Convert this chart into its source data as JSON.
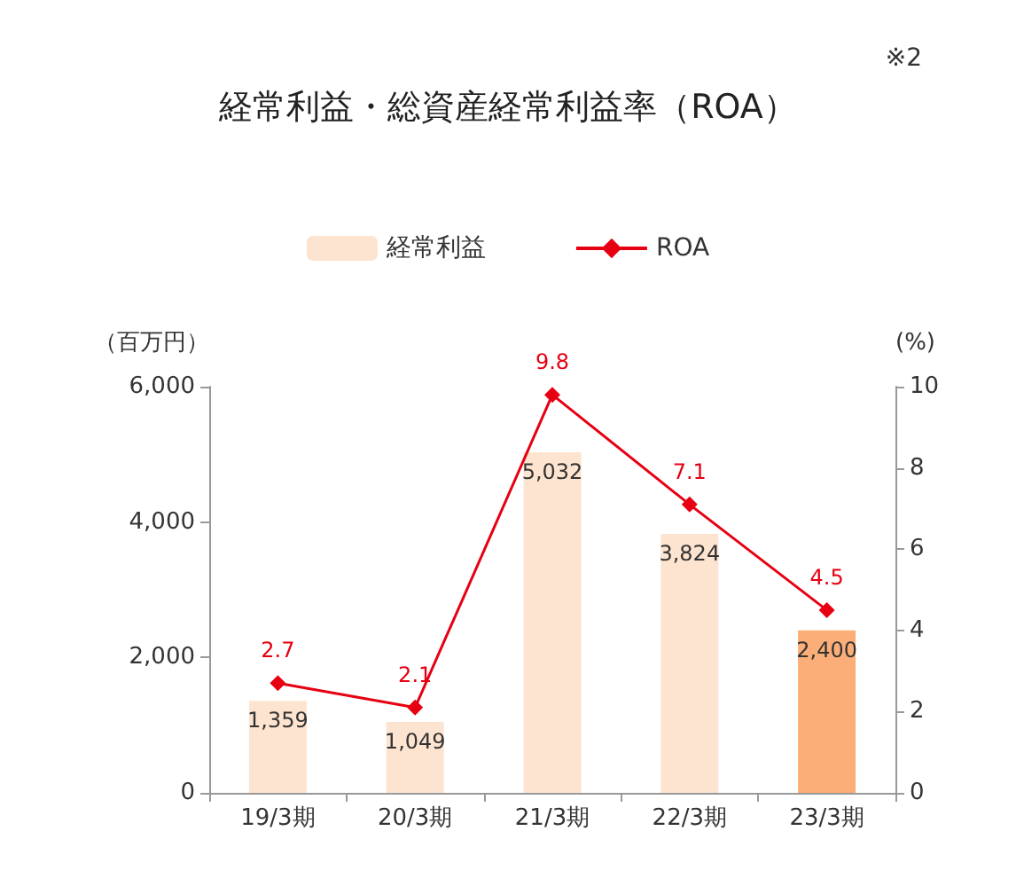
{
  "chart_data": {
    "type": "bar",
    "title": "経常利益・総資産経常利益率（ROA）",
    "annotations": [
      "※2"
    ],
    "ylabel": "（百万円）",
    "y2label": "(%)",
    "categories": [
      "19/3期",
      "20/3期",
      "21/3期",
      "22/3期",
      "23/3期"
    ],
    "series": [
      {
        "name": "経常利益",
        "color": "#fde4d0",
        "colors": [
          "#fde4d0",
          "#fde4d0",
          "#fde4d0",
          "#fde4d0",
          "#fbae78"
        ],
        "values": [
          1359,
          1049,
          5032,
          3824,
          2400
        ],
        "value_labels": [
          "1,359",
          "1,049",
          "5,032",
          "3,824",
          "2,400"
        ]
      },
      {
        "name": "ROA",
        "type": "line",
        "axis": "y2",
        "color": "#e60012",
        "marker": "diamond",
        "values": [
          2.7,
          2.1,
          9.8,
          7.1,
          4.5
        ],
        "value_labels": [
          "2.7",
          "2.1",
          "9.8",
          "7.1",
          "4.5"
        ]
      }
    ],
    "ylim": [
      0,
      6000
    ],
    "yticks": [
      0,
      {
        "value": 2000,
        "label": "2,000"
      },
      {
        "value": 4000,
        "label": "4,000"
      },
      {
        "value": 6000,
        "label": "6,000"
      }
    ],
    "y2lim": [
      0,
      10
    ],
    "y2ticks": [
      0,
      2,
      4,
      6,
      8,
      10
    ],
    "grid": false,
    "legend": "top"
  }
}
